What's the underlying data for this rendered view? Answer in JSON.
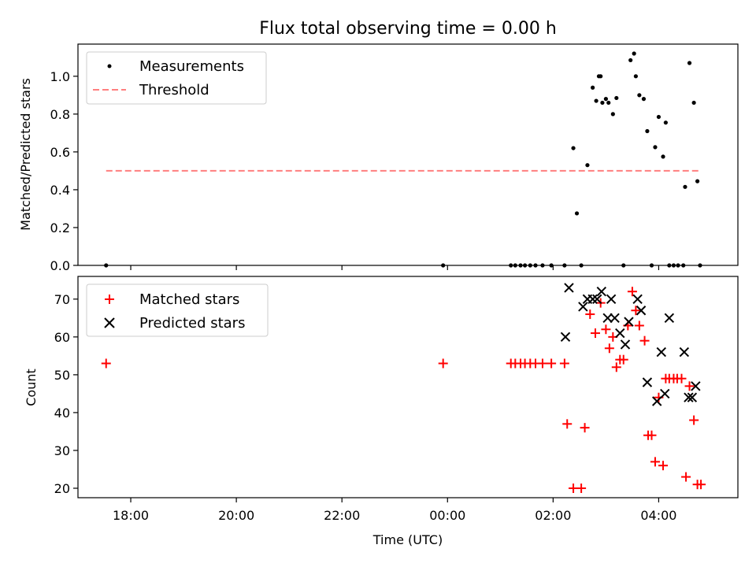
{
  "chart_data": [
    {
      "type": "scatter",
      "title": "Flux total observing time = 0.00 h",
      "xlabel": "",
      "ylabel": "Matched/Predicted stars",
      "ylim": [
        0,
        1.17
      ],
      "xlim": [
        "17:00",
        "05:30"
      ],
      "yticks": [
        "0.0",
        "0.2",
        "0.4",
        "0.6",
        "0.8",
        "1.0"
      ],
      "legend": "top-left",
      "legend_entries": [
        "Measurements",
        "Threshold"
      ],
      "series": [
        {
          "name": "Measurements",
          "color": "#000000",
          "marker": "dot",
          "points": [
            [
              "17:32",
              0
            ],
            [
              "23:55",
              0
            ],
            [
              "01:12",
              0
            ],
            [
              "01:17",
              0
            ],
            [
              "01:23",
              0
            ],
            [
              "01:28",
              0
            ],
            [
              "01:34",
              0
            ],
            [
              "01:40",
              0
            ],
            [
              "01:48",
              0
            ],
            [
              "01:58",
              0
            ],
            [
              "02:13",
              0
            ],
            [
              "02:23",
              0.62
            ],
            [
              "02:27",
              0.275
            ],
            [
              "02:32",
              0
            ],
            [
              "02:39",
              0.53
            ],
            [
              "02:45",
              0.94
            ],
            [
              "02:49",
              0.87
            ],
            [
              "02:52",
              1.0
            ],
            [
              "02:54",
              1.0
            ],
            [
              "02:56",
              0.86
            ],
            [
              "03:00",
              0.88
            ],
            [
              "03:03",
              0.86
            ],
            [
              "03:08",
              0.8
            ],
            [
              "03:12",
              0.885
            ],
            [
              "03:20",
              0
            ],
            [
              "03:28",
              1.085
            ],
            [
              "03:32",
              1.12
            ],
            [
              "03:34",
              1.0
            ],
            [
              "03:38",
              0.9
            ],
            [
              "03:43",
              0.88
            ],
            [
              "03:47",
              0.71
            ],
            [
              "03:52",
              0
            ],
            [
              "03:56",
              0.625
            ],
            [
              "04:00",
              0.785
            ],
            [
              "04:05",
              0.575
            ],
            [
              "04:08",
              0.755
            ],
            [
              "04:12",
              0
            ],
            [
              "04:17",
              0
            ],
            [
              "04:22",
              0
            ],
            [
              "04:28",
              0
            ],
            [
              "04:30",
              0.415
            ],
            [
              "04:35",
              1.07
            ],
            [
              "04:40",
              0.86
            ],
            [
              "04:44",
              0.445
            ],
            [
              "04:47",
              0
            ]
          ]
        },
        {
          "name": "Threshold",
          "color": "#ff7f7f",
          "style": "dashed",
          "x": [
            "17:32",
            "04:47"
          ],
          "y": [
            0.5,
            0.5
          ]
        }
      ]
    },
    {
      "type": "scatter",
      "title": "",
      "xlabel": "Time (UTC)",
      "ylabel": "Count",
      "ylim": [
        17.5,
        76
      ],
      "xlim": [
        "17:00",
        "05:30"
      ],
      "yticks": [
        "20",
        "30",
        "40",
        "50",
        "60",
        "70"
      ],
      "xticks": [
        "18:00",
        "20:00",
        "22:00",
        "00:00",
        "02:00",
        "04:00"
      ],
      "legend": "top-left",
      "legend_entries": [
        "Matched stars",
        "Predicted stars"
      ],
      "series": [
        {
          "name": "Matched stars",
          "color": "#ff0000",
          "marker": "plus",
          "points": [
            [
              "17:32",
              53
            ],
            [
              "23:55",
              53
            ],
            [
              "01:12",
              53
            ],
            [
              "01:17",
              53
            ],
            [
              "01:23",
              53
            ],
            [
              "01:28",
              53
            ],
            [
              "01:34",
              53
            ],
            [
              "01:40",
              53
            ],
            [
              "01:48",
              53
            ],
            [
              "01:58",
              53
            ],
            [
              "02:13",
              53
            ],
            [
              "02:16",
              37
            ],
            [
              "02:23",
              20
            ],
            [
              "02:32",
              20
            ],
            [
              "02:36",
              36
            ],
            [
              "02:42",
              66
            ],
            [
              "02:48",
              61
            ],
            [
              "02:54",
              69
            ],
            [
              "03:00",
              62
            ],
            [
              "03:04",
              57
            ],
            [
              "03:08",
              60
            ],
            [
              "03:12",
              52
            ],
            [
              "03:16",
              54
            ],
            [
              "03:20",
              54
            ],
            [
              "03:25",
              63
            ],
            [
              "03:30",
              72
            ],
            [
              "03:34",
              67
            ],
            [
              "03:38",
              63
            ],
            [
              "03:44",
              59
            ],
            [
              "03:48",
              34
            ],
            [
              "03:52",
              34
            ],
            [
              "03:56",
              27
            ],
            [
              "04:00",
              44
            ],
            [
              "04:05",
              26
            ],
            [
              "04:08",
              49
            ],
            [
              "04:12",
              49
            ],
            [
              "04:17",
              49
            ],
            [
              "04:21",
              49
            ],
            [
              "04:26",
              49
            ],
            [
              "04:31",
              23
            ],
            [
              "04:35",
              47
            ],
            [
              "04:40",
              38
            ],
            [
              "04:44",
              21
            ],
            [
              "04:48",
              21
            ]
          ]
        },
        {
          "name": "Predicted stars",
          "color": "#000000",
          "marker": "x",
          "points": [
            [
              "02:14",
              60
            ],
            [
              "02:18",
              73
            ],
            [
              "02:34",
              68
            ],
            [
              "02:39",
              70
            ],
            [
              "02:45",
              70
            ],
            [
              "02:50",
              70
            ],
            [
              "02:55",
              72
            ],
            [
              "03:02",
              65
            ],
            [
              "03:06",
              70
            ],
            [
              "03:10",
              65
            ],
            [
              "03:16",
              61
            ],
            [
              "03:22",
              58
            ],
            [
              "03:26",
              64
            ],
            [
              "03:36",
              70
            ],
            [
              "03:40",
              67
            ],
            [
              "03:47",
              48
            ],
            [
              "03:58",
              43
            ],
            [
              "04:03",
              56
            ],
            [
              "04:07",
              45
            ],
            [
              "04:12",
              65
            ],
            [
              "04:29",
              56
            ],
            [
              "04:34",
              44
            ],
            [
              "04:38",
              44
            ],
            [
              "04:42",
              47
            ]
          ]
        }
      ]
    }
  ]
}
